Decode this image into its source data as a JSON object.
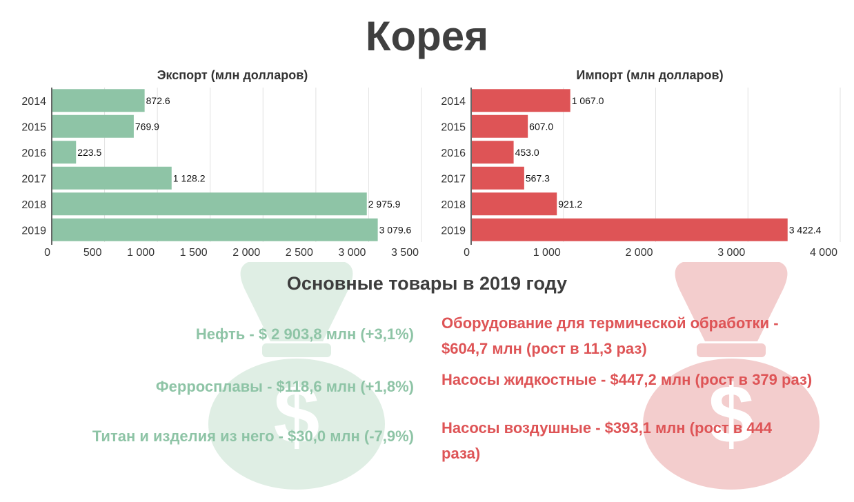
{
  "page": {
    "title": "Корея",
    "subtitle": "Основные товары в 2019 году"
  },
  "colors": {
    "export": "#8ec4a6",
    "import": "#de5456",
    "export_bag": "#dfeee4",
    "import_bag": "#f3cdcd"
  },
  "chart_data": [
    {
      "type": "bar",
      "orientation": "horizontal",
      "title": "Экспорт (млн долларов)",
      "categories": [
        "2014",
        "2015",
        "2016",
        "2017",
        "2018",
        "2019"
      ],
      "values": [
        872.6,
        769.9,
        223.5,
        1128.2,
        2975.9,
        3079.6
      ],
      "value_labels": [
        "872.6",
        "769.9",
        "223.5",
        "1 128.2",
        "2 975.9",
        "3 079.6"
      ],
      "xlim": [
        0,
        3500
      ],
      "ticks": [
        0,
        500,
        1000,
        1500,
        2000,
        2500,
        3000,
        3500
      ],
      "tick_labels": [
        "0",
        "500",
        "1 000",
        "1 500",
        "2 000",
        "2 500",
        "3 000",
        "3 500"
      ],
      "grid": true,
      "color": "#8ec4a6"
    },
    {
      "type": "bar",
      "orientation": "horizontal",
      "title": "Импорт (млн долларов)",
      "categories": [
        "2014",
        "2015",
        "2016",
        "2017",
        "2018",
        "2019"
      ],
      "values": [
        1067.0,
        607.0,
        453.0,
        567.3,
        921.2,
        3422.4
      ],
      "value_labels": [
        "1 067.0",
        "607.0",
        "453.0",
        "567.3",
        "921.2",
        "3 422.4"
      ],
      "xlim": [
        0,
        4000
      ],
      "ticks": [
        0,
        1000,
        2000,
        3000,
        4000
      ],
      "tick_labels": [
        "0",
        "1 000",
        "2 000",
        "3 000",
        "4 000"
      ],
      "grid": true,
      "color": "#de5456"
    }
  ],
  "goods": {
    "export": [
      "Нефть - $ 2 903,8 млн (+3,1%)",
      "Ферросплавы - $118,6 млн (+1,8%)",
      "Титан и изделия из него - $30,0 млн (-7,9%)"
    ],
    "import": [
      "Оборудование для термической обработки - $604,7 млн (рост в 11,3 раз)",
      "Насосы жидкостные - $447,2 млн (рост в 379 раз)",
      "Насосы воздушные - $393,1 млн (рост в 444 раза)"
    ]
  },
  "icons": {
    "export_bag": "money-bag-dollar-icon",
    "import_bag": "money-bag-dollar-icon"
  }
}
